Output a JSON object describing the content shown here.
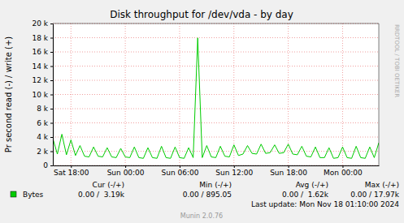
{
  "chart_data": {
    "type": "line",
    "title": "Disk throughput for /dev/vda - by day",
    "y_label": "Pr second read (-) / write (+)",
    "watermark": "RRDTOOL / TOBI OETIKER",
    "x": [
      16,
      16.5,
      17,
      17.5,
      18,
      18.5,
      19,
      19.5,
      20,
      20.5,
      21,
      21.5,
      22,
      22.5,
      23,
      23.5,
      24,
      24.5,
      25,
      25.5,
      26,
      26.5,
      27,
      27.5,
      28,
      28.5,
      29,
      29.5,
      30,
      30.5,
      31,
      31.5,
      32,
      32.5,
      33,
      33.5,
      34,
      34.5,
      35,
      35.5,
      36,
      36.5,
      37,
      37.5,
      38,
      38.5,
      39,
      39.5,
      40,
      40.5,
      41,
      41.5,
      42,
      42.5,
      43,
      43.5,
      44,
      44.5,
      45,
      45.5,
      46,
      46.5,
      47,
      47.5,
      48,
      48.5,
      49,
      49.5,
      50,
      50.5,
      51,
      51.5,
      52
    ],
    "series": [
      {
        "name": "Bytes",
        "color": "#00cc00",
        "values": [
          3800,
          1600,
          4400,
          1500,
          3600,
          1400,
          2800,
          1300,
          1200,
          2600,
          1300,
          1200,
          2500,
          1200,
          1100,
          2400,
          1200,
          1100,
          2600,
          1100,
          1000,
          2500,
          1100,
          1000,
          2700,
          1100,
          1000,
          2600,
          1100,
          1000,
          2500,
          1100,
          17970,
          1100,
          2800,
          1200,
          1100,
          2700,
          1300,
          1200,
          2900,
          1400,
          1600,
          2800,
          1700,
          1600,
          3000,
          1700,
          1800,
          2900,
          1700,
          1800,
          3000,
          1600,
          1500,
          2700,
          1300,
          1200,
          2600,
          1100,
          1100,
          2500,
          1000,
          1100,
          2600,
          1100,
          1000,
          2700,
          1100,
          1000,
          2600,
          1100,
          3190
        ]
      }
    ],
    "xlim": [
      16,
      52
    ],
    "xticks": [
      {
        "value": 18,
        "label": "Sat 18:00"
      },
      {
        "value": 24,
        "label": "Sun 00:00"
      },
      {
        "value": 30,
        "label": "Sun 06:00"
      },
      {
        "value": 36,
        "label": "Sun 12:00"
      },
      {
        "value": 42,
        "label": "Sun 18:00"
      },
      {
        "value": 48,
        "label": "Mon 00:00"
      }
    ],
    "ylim": [
      0,
      20000
    ],
    "yticks": [
      0,
      {
        "value": 2000,
        "label": "2 k"
      },
      {
        "value": 4000,
        "label": "4 k"
      },
      {
        "value": 6000,
        "label": "6 k"
      },
      {
        "value": 8000,
        "label": "8 k"
      },
      {
        "value": 10000,
        "label": "10 k"
      },
      {
        "value": 12000,
        "label": "12 k"
      },
      {
        "value": 14000,
        "label": "14 k"
      },
      {
        "value": 16000,
        "label": "16 k"
      },
      {
        "value": 18000,
        "label": "18 k"
      },
      {
        "value": 20000,
        "label": "20 k"
      }
    ],
    "grid": true,
    "stats_headers": [
      "Cur (-/+)",
      "Min (-/+)",
      "Avg (-/+)",
      "Max (-/+)"
    ],
    "stats_values": [
      "0.00 /  3.19k",
      "0.00 / 895.05",
      "0.00 /  1.62k",
      "0.00 / 17.97k"
    ],
    "last_update": "Last update: Mon Nov 18 01:10:00 2024",
    "credit": "Munin 2.0.76"
  }
}
